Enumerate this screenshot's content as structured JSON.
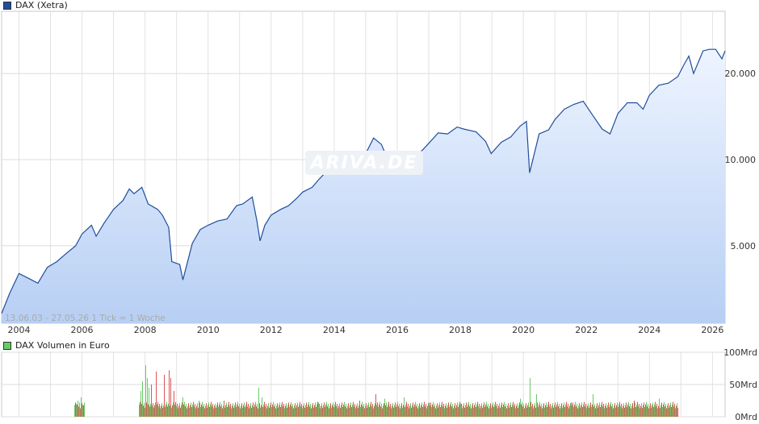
{
  "legend": {
    "price": "DAX (Xetra)",
    "volume": "DAX Volumen in Euro",
    "price_color": "#1f4e9c",
    "volume_color": "#66cc66"
  },
  "info_text": "13.06.03 - 27.05.26    1 Tick = 1 Woche",
  "watermark": "ARIVA.DE",
  "chart_data": [
    {
      "type": "area",
      "scale": "log",
      "x_ticks": [
        "2004",
        "2006",
        "2008",
        "2010",
        "2012",
        "2014",
        "2016",
        "2018",
        "2020",
        "2022",
        "2024",
        "2026"
      ],
      "y_ticks": [
        {
          "value": 5000,
          "label": "5.000"
        },
        {
          "value": 10000,
          "label": "10.000"
        },
        {
          "value": 20000,
          "label": "20.000"
        }
      ],
      "xlim": [
        2003.45,
        2026.4
      ],
      "ylim": [
        2680,
        33000
      ],
      "series": [
        {
          "name": "DAX (Xetra)",
          "x": [
            2003.45,
            2003.7,
            2004.0,
            2004.3,
            2004.6,
            2004.9,
            2005.2,
            2005.5,
            2005.8,
            2006.0,
            2006.3,
            2006.45,
            2006.7,
            2007.0,
            2007.3,
            2007.5,
            2007.65,
            2007.9,
            2008.1,
            2008.4,
            2008.55,
            2008.75,
            2008.85,
            2009.1,
            2009.2,
            2009.5,
            2009.75,
            2010.0,
            2010.3,
            2010.6,
            2010.9,
            2011.1,
            2011.4,
            2011.55,
            2011.65,
            2011.8,
            2012.0,
            2012.3,
            2012.55,
            2012.8,
            2013.0,
            2013.3,
            2013.5,
            2013.8,
            2014.0,
            2014.3,
            2014.6,
            2014.8,
            2015.0,
            2015.25,
            2015.5,
            2015.7,
            2015.9,
            2016.1,
            2016.5,
            2016.8,
            2017.0,
            2017.3,
            2017.6,
            2017.9,
            2018.1,
            2018.5,
            2018.8,
            2018.98,
            2019.3,
            2019.6,
            2019.9,
            2020.1,
            2020.2,
            2020.5,
            2020.8,
            2021.0,
            2021.3,
            2021.6,
            2021.9,
            2022.2,
            2022.5,
            2022.75,
            2023.0,
            2023.3,
            2023.6,
            2023.8,
            2024.0,
            2024.3,
            2024.6,
            2024.9,
            2025.1,
            2025.25,
            2025.4,
            2025.7,
            2025.9,
            2026.1,
            2026.3,
            2026.4
          ],
          "values": [
            2900,
            3400,
            4000,
            3850,
            3700,
            4200,
            4400,
            4700,
            5000,
            5500,
            5900,
            5400,
            6000,
            6700,
            7200,
            7900,
            7600,
            8000,
            7000,
            6700,
            6400,
            5800,
            4400,
            4300,
            3800,
            5100,
            5700,
            5900,
            6100,
            6200,
            6900,
            7000,
            7400,
            6100,
            5200,
            5900,
            6400,
            6700,
            6900,
            7300,
            7700,
            8000,
            8500,
            9200,
            9500,
            9600,
            9400,
            9300,
            10500,
            11900,
            11300,
            10000,
            10700,
            9800,
            10200,
            10800,
            11400,
            12400,
            12300,
            13000,
            12800,
            12500,
            11600,
            10500,
            11500,
            12000,
            13100,
            13600,
            9000,
            12300,
            12700,
            13800,
            15000,
            15600,
            16000,
            14300,
            12800,
            12300,
            14500,
            15800,
            15800,
            15000,
            16800,
            18200,
            18500,
            19500,
            21500,
            23000,
            20000,
            24000,
            24300,
            24300,
            22500,
            24000
          ]
        }
      ]
    },
    {
      "type": "bar",
      "title": "DAX Volumen in Euro",
      "y_ticks": [
        {
          "value": 0,
          "label": "0Mrd"
        },
        {
          "value": 50,
          "label": "50Mrd"
        },
        {
          "value": 100,
          "label": "100Mrd"
        }
      ],
      "ylim": [
        0,
        100
      ],
      "unit": "Mrd",
      "series": [
        {
          "name": "DAX Volumen in Euro",
          "x": [
            2005.8,
            2005.85,
            2005.9,
            2005.95,
            2006.0,
            2007.85,
            2007.9,
            2008.0,
            2008.05,
            2008.1,
            2008.2,
            2008.35,
            2008.6,
            2008.75,
            2008.8,
            2008.9,
            2009.2,
            2009.7,
            2010.2,
            2010.5,
            2011.6,
            2011.7,
            2013.5,
            2014.8,
            2015.3,
            2015.6,
            2016.2,
            2017.0,
            2018.0,
            2019.9,
            2020.2,
            2020.4,
            2021.5,
            2022.2,
            2023.5,
            2024.3,
            2025.3
          ],
          "values": [
            20,
            25,
            22,
            30,
            18,
            40,
            55,
            80,
            60,
            45,
            50,
            70,
            65,
            72,
            60,
            40,
            30,
            25,
            20,
            25,
            45,
            30,
            22,
            25,
            35,
            28,
            30,
            22,
            20,
            28,
            60,
            35,
            22,
            35,
            25,
            28,
            22
          ],
          "base": 18
        }
      ]
    }
  ]
}
